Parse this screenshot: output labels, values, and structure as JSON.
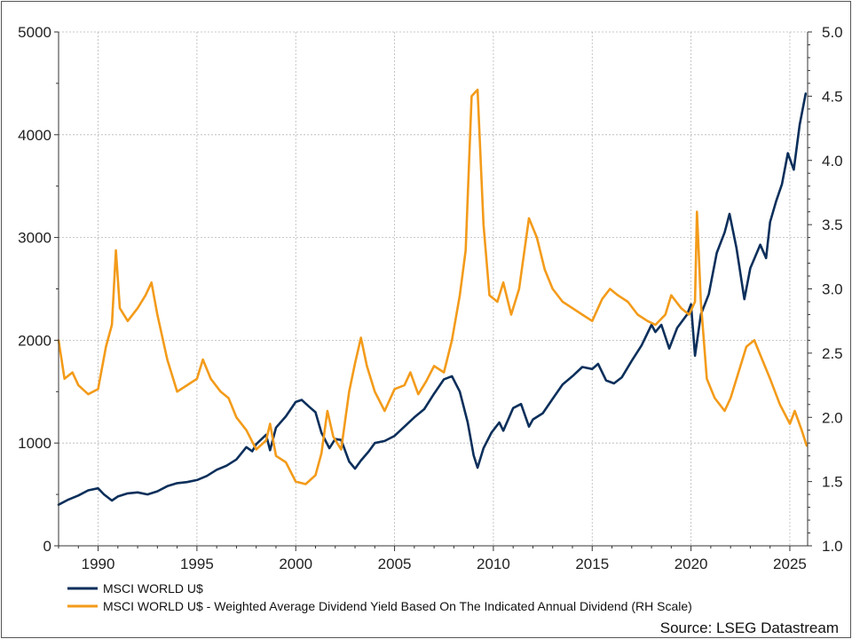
{
  "chart_data": {
    "type": "line",
    "title": "",
    "xlabel": "",
    "ylabel": "",
    "x_ticks": [
      "1990",
      "1995",
      "2000",
      "2005",
      "2010",
      "2015",
      "2020",
      "2025"
    ],
    "y_left_ticks": [
      "0",
      "1000",
      "2000",
      "3000",
      "4000",
      "5000"
    ],
    "y_right_ticks": [
      "1.0",
      "1.5",
      "2.0",
      "2.5",
      "3.0",
      "3.5",
      "4.0",
      "4.5",
      "5.0"
    ],
    "xlim": [
      1988.0,
      2025.9
    ],
    "ylim_left": [
      0,
      5000
    ],
    "ylim_right": [
      1.0,
      5.0
    ],
    "grid": true,
    "legend_position": "bottom-left",
    "series": [
      {
        "name": "MSCI WORLD U$",
        "axis": "left",
        "color": "#0b2f5b",
        "points": [
          [
            1988.0,
            400
          ],
          [
            1988.5,
            450
          ],
          [
            1989.0,
            490
          ],
          [
            1989.5,
            540
          ],
          [
            1990.0,
            560
          ],
          [
            1990.3,
            500
          ],
          [
            1990.7,
            440
          ],
          [
            1991.0,
            480
          ],
          [
            1991.5,
            510
          ],
          [
            1992.0,
            520
          ],
          [
            1992.5,
            500
          ],
          [
            1993.0,
            530
          ],
          [
            1993.5,
            580
          ],
          [
            1994.0,
            610
          ],
          [
            1994.5,
            620
          ],
          [
            1995.0,
            640
          ],
          [
            1995.5,
            680
          ],
          [
            1996.0,
            740
          ],
          [
            1996.5,
            780
          ],
          [
            1997.0,
            840
          ],
          [
            1997.5,
            960
          ],
          [
            1997.8,
            920
          ],
          [
            1998.0,
            990
          ],
          [
            1998.5,
            1080
          ],
          [
            1998.7,
            930
          ],
          [
            1999.0,
            1150
          ],
          [
            1999.5,
            1260
          ],
          [
            2000.0,
            1400
          ],
          [
            2000.3,
            1420
          ],
          [
            2000.7,
            1350
          ],
          [
            2001.0,
            1300
          ],
          [
            2001.3,
            1100
          ],
          [
            2001.7,
            950
          ],
          [
            2002.0,
            1040
          ],
          [
            2002.3,
            1030
          ],
          [
            2002.7,
            820
          ],
          [
            2003.0,
            750
          ],
          [
            2003.3,
            830
          ],
          [
            2003.7,
            920
          ],
          [
            2004.0,
            1000
          ],
          [
            2004.5,
            1020
          ],
          [
            2005.0,
            1070
          ],
          [
            2005.5,
            1160
          ],
          [
            2006.0,
            1250
          ],
          [
            2006.5,
            1330
          ],
          [
            2007.0,
            1480
          ],
          [
            2007.5,
            1620
          ],
          [
            2007.9,
            1650
          ],
          [
            2008.3,
            1500
          ],
          [
            2008.7,
            1200
          ],
          [
            2009.0,
            880
          ],
          [
            2009.2,
            760
          ],
          [
            2009.5,
            950
          ],
          [
            2009.9,
            1100
          ],
          [
            2010.3,
            1200
          ],
          [
            2010.5,
            1120
          ],
          [
            2011.0,
            1340
          ],
          [
            2011.4,
            1380
          ],
          [
            2011.8,
            1160
          ],
          [
            2012.0,
            1230
          ],
          [
            2012.5,
            1290
          ],
          [
            2013.0,
            1430
          ],
          [
            2013.5,
            1570
          ],
          [
            2014.0,
            1650
          ],
          [
            2014.5,
            1740
          ],
          [
            2015.0,
            1720
          ],
          [
            2015.3,
            1770
          ],
          [
            2015.7,
            1610
          ],
          [
            2016.1,
            1580
          ],
          [
            2016.5,
            1640
          ],
          [
            2017.0,
            1800
          ],
          [
            2017.5,
            1950
          ],
          [
            2018.0,
            2150
          ],
          [
            2018.2,
            2080
          ],
          [
            2018.5,
            2150
          ],
          [
            2018.9,
            1920
          ],
          [
            2019.3,
            2120
          ],
          [
            2019.8,
            2250
          ],
          [
            2020.0,
            2350
          ],
          [
            2020.2,
            1850
          ],
          [
            2020.5,
            2250
          ],
          [
            2020.9,
            2450
          ],
          [
            2021.3,
            2850
          ],
          [
            2021.7,
            3050
          ],
          [
            2021.95,
            3230
          ],
          [
            2022.3,
            2900
          ],
          [
            2022.7,
            2400
          ],
          [
            2023.0,
            2700
          ],
          [
            2023.5,
            2930
          ],
          [
            2023.8,
            2800
          ],
          [
            2024.0,
            3150
          ],
          [
            2024.3,
            3350
          ],
          [
            2024.6,
            3520
          ],
          [
            2024.9,
            3820
          ],
          [
            2025.2,
            3660
          ],
          [
            2025.5,
            4100
          ],
          [
            2025.8,
            4400
          ]
        ]
      },
      {
        "name": "MSCI WORLD U$ - Weighted Average Dividend Yield Based On The Indicated Annual Dividend (RH Scale)",
        "axis": "right",
        "color": "#f39b1a",
        "points": [
          [
            1988.0,
            2.6
          ],
          [
            1988.3,
            2.3
          ],
          [
            1988.7,
            2.35
          ],
          [
            1989.0,
            2.25
          ],
          [
            1989.5,
            2.18
          ],
          [
            1990.0,
            2.22
          ],
          [
            1990.4,
            2.55
          ],
          [
            1990.7,
            2.72
          ],
          [
            1990.9,
            3.3
          ],
          [
            1991.1,
            2.85
          ],
          [
            1991.5,
            2.75
          ],
          [
            1992.0,
            2.85
          ],
          [
            1992.4,
            2.95
          ],
          [
            1992.7,
            3.05
          ],
          [
            1993.0,
            2.8
          ],
          [
            1993.5,
            2.45
          ],
          [
            1994.0,
            2.2
          ],
          [
            1994.5,
            2.25
          ],
          [
            1995.0,
            2.3
          ],
          [
            1995.3,
            2.45
          ],
          [
            1995.7,
            2.3
          ],
          [
            1996.2,
            2.2
          ],
          [
            1996.6,
            2.15
          ],
          [
            1997.0,
            2.0
          ],
          [
            1997.5,
            1.9
          ],
          [
            1998.0,
            1.75
          ],
          [
            1998.5,
            1.82
          ],
          [
            1998.7,
            1.95
          ],
          [
            1999.0,
            1.7
          ],
          [
            1999.5,
            1.65
          ],
          [
            2000.0,
            1.5
          ],
          [
            2000.5,
            1.48
          ],
          [
            2001.0,
            1.55
          ],
          [
            2001.3,
            1.72
          ],
          [
            2001.6,
            2.05
          ],
          [
            2001.9,
            1.85
          ],
          [
            2002.3,
            1.75
          ],
          [
            2002.7,
            2.2
          ],
          [
            2003.0,
            2.42
          ],
          [
            2003.3,
            2.62
          ],
          [
            2003.6,
            2.4
          ],
          [
            2004.0,
            2.2
          ],
          [
            2004.5,
            2.05
          ],
          [
            2005.0,
            2.22
          ],
          [
            2005.5,
            2.25
          ],
          [
            2005.8,
            2.35
          ],
          [
            2006.2,
            2.18
          ],
          [
            2006.6,
            2.28
          ],
          [
            2007.0,
            2.4
          ],
          [
            2007.5,
            2.35
          ],
          [
            2007.9,
            2.6
          ],
          [
            2008.3,
            2.95
          ],
          [
            2008.6,
            3.3
          ],
          [
            2008.9,
            4.5
          ],
          [
            2009.2,
            4.55
          ],
          [
            2009.5,
            3.5
          ],
          [
            2009.8,
            2.95
          ],
          [
            2010.2,
            2.9
          ],
          [
            2010.5,
            3.05
          ],
          [
            2010.9,
            2.8
          ],
          [
            2011.3,
            3.0
          ],
          [
            2011.8,
            3.55
          ],
          [
            2012.2,
            3.4
          ],
          [
            2012.6,
            3.15
          ],
          [
            2013.0,
            3.0
          ],
          [
            2013.5,
            2.9
          ],
          [
            2014.0,
            2.85
          ],
          [
            2014.5,
            2.8
          ],
          [
            2015.0,
            2.75
          ],
          [
            2015.5,
            2.92
          ],
          [
            2015.9,
            3.0
          ],
          [
            2016.3,
            2.95
          ],
          [
            2016.8,
            2.9
          ],
          [
            2017.3,
            2.8
          ],
          [
            2017.8,
            2.75
          ],
          [
            2018.2,
            2.72
          ],
          [
            2018.7,
            2.8
          ],
          [
            2019.0,
            2.95
          ],
          [
            2019.5,
            2.85
          ],
          [
            2019.9,
            2.8
          ],
          [
            2020.2,
            2.9
          ],
          [
            2020.3,
            3.6
          ],
          [
            2020.5,
            2.9
          ],
          [
            2020.8,
            2.3
          ],
          [
            2021.2,
            2.15
          ],
          [
            2021.7,
            2.05
          ],
          [
            2022.0,
            2.15
          ],
          [
            2022.4,
            2.35
          ],
          [
            2022.8,
            2.55
          ],
          [
            2023.2,
            2.6
          ],
          [
            2023.6,
            2.45
          ],
          [
            2024.0,
            2.3
          ],
          [
            2024.5,
            2.1
          ],
          [
            2025.0,
            1.95
          ],
          [
            2025.25,
            2.05
          ],
          [
            2025.6,
            1.9
          ],
          [
            2025.85,
            1.78
          ]
        ]
      }
    ]
  },
  "source": "Source: LSEG Datastream"
}
